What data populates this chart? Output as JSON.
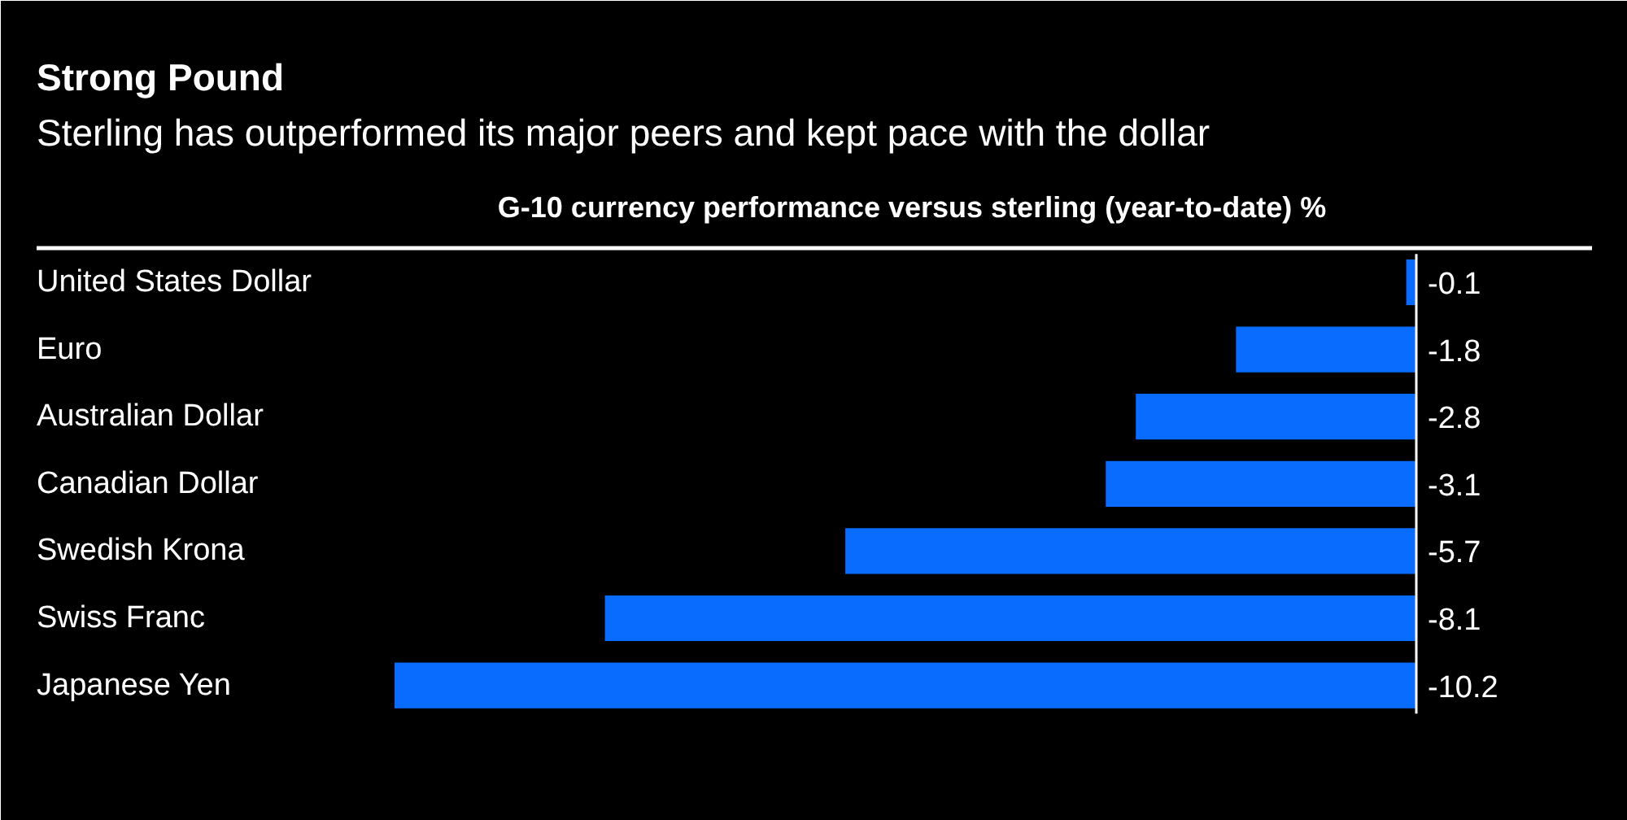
{
  "chart_data": {
    "type": "bar",
    "orientation": "horizontal",
    "title": "Strong Pound",
    "subtitle": "Sterling has outperformed its major peers and kept pace with the dollar",
    "xlabel": "G-10 currency performance versus sterling (year-to-date) %",
    "categories": [
      "United States Dollar",
      "Euro",
      "Australian Dollar",
      "Canadian Dollar",
      "Swedish Krona",
      "Swiss Franc",
      "Japanese Yen"
    ],
    "values": [
      -0.1,
      -1.8,
      -2.8,
      -3.1,
      -5.7,
      -8.1,
      -10.2
    ],
    "color": "#0a6cff",
    "data_labels": true,
    "ref_lines": [
      {
        "axis": "x",
        "value": 0,
        "color": "#ffffff"
      }
    ]
  }
}
